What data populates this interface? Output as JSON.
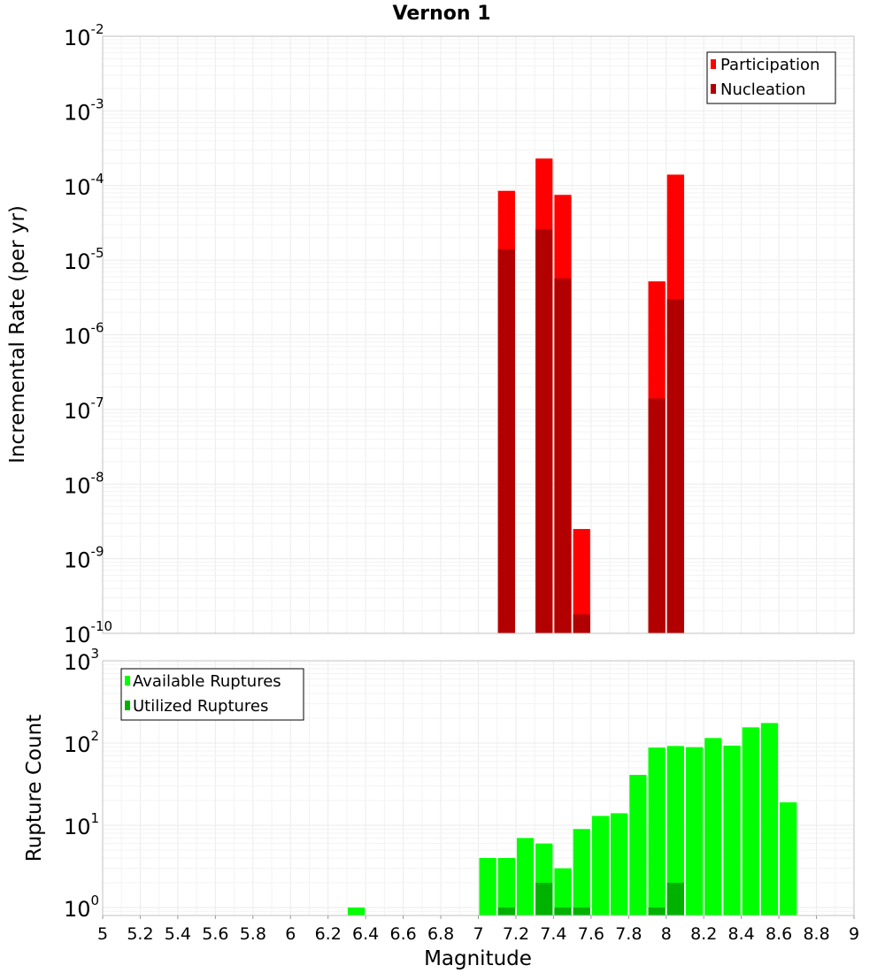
{
  "chart_data": [
    {
      "type": "bar",
      "title": "Vernon 1",
      "xlabel": "",
      "ylabel": "Incremental Rate (per yr)",
      "yscale": "log",
      "xlim": [
        5,
        9
      ],
      "ylim": [
        1e-10,
        0.01
      ],
      "y_tick_base": "10",
      "y_tick_exponents": [
        "-10",
        "-9",
        "-8",
        "-7",
        "-6",
        "-5",
        "-4",
        "-3",
        "-2"
      ],
      "bin_width": 0.1,
      "legend": {
        "placement": "top-right",
        "entries": [
          "Participation",
          "Nucleation"
        ]
      },
      "colors": {
        "Participation": "#ff0000",
        "Nucleation": "#b20000"
      },
      "series": [
        {
          "name": "Participation",
          "x": [
            7.15,
            7.35,
            7.45,
            7.55,
            7.95,
            8.05
          ],
          "values": [
            8.5e-05,
            0.00023,
            7.5e-05,
            2.5e-09,
            5.2e-06,
            0.00014
          ]
        },
        {
          "name": "Nucleation",
          "x": [
            7.15,
            7.35,
            7.45,
            7.55,
            7.95,
            8.05
          ],
          "values": [
            1.4e-05,
            2.6e-05,
            5.7e-06,
            1.8e-10,
            1.4e-07,
            3e-06
          ]
        }
      ]
    },
    {
      "type": "bar",
      "title": "",
      "xlabel": "Magnitude",
      "ylabel": "Rupture Count",
      "yscale": "log",
      "xlim": [
        5,
        9
      ],
      "ylim": [
        0.8,
        1000
      ],
      "y_tick_base": "10",
      "y_tick_exponents": [
        "0",
        "1",
        "2",
        "3"
      ],
      "x_ticks": [
        "5",
        "5.2",
        "5.4",
        "5.6",
        "5.8",
        "6",
        "6.2",
        "6.4",
        "6.6",
        "6.8",
        "7",
        "7.2",
        "7.4",
        "7.6",
        "7.8",
        "8",
        "8.2",
        "8.4",
        "8.6",
        "8.8",
        "9"
      ],
      "bin_width": 0.1,
      "legend": {
        "placement": "top-left",
        "entries": [
          "Available Ruptures",
          "Utilized Ruptures"
        ]
      },
      "colors": {
        "Available Ruptures": "#00ff00",
        "Utilized Ruptures": "#00b200"
      },
      "series": [
        {
          "name": "Available Ruptures",
          "x": [
            6.35,
            7.05,
            7.15,
            7.25,
            7.35,
            7.45,
            7.55,
            7.65,
            7.75,
            7.85,
            7.95,
            8.05,
            8.15,
            8.25,
            8.35,
            8.45,
            8.55,
            8.65
          ],
          "values": [
            1,
            4,
            4,
            7,
            6,
            3,
            9,
            13,
            14,
            41,
            88,
            92,
            89,
            115,
            93,
            155,
            175,
            19
          ]
        },
        {
          "name": "Utilized Ruptures",
          "x": [
            7.15,
            7.35,
            7.45,
            7.55,
            7.95,
            8.05
          ],
          "values": [
            1,
            2,
            1,
            1,
            1,
            2
          ]
        }
      ]
    }
  ]
}
